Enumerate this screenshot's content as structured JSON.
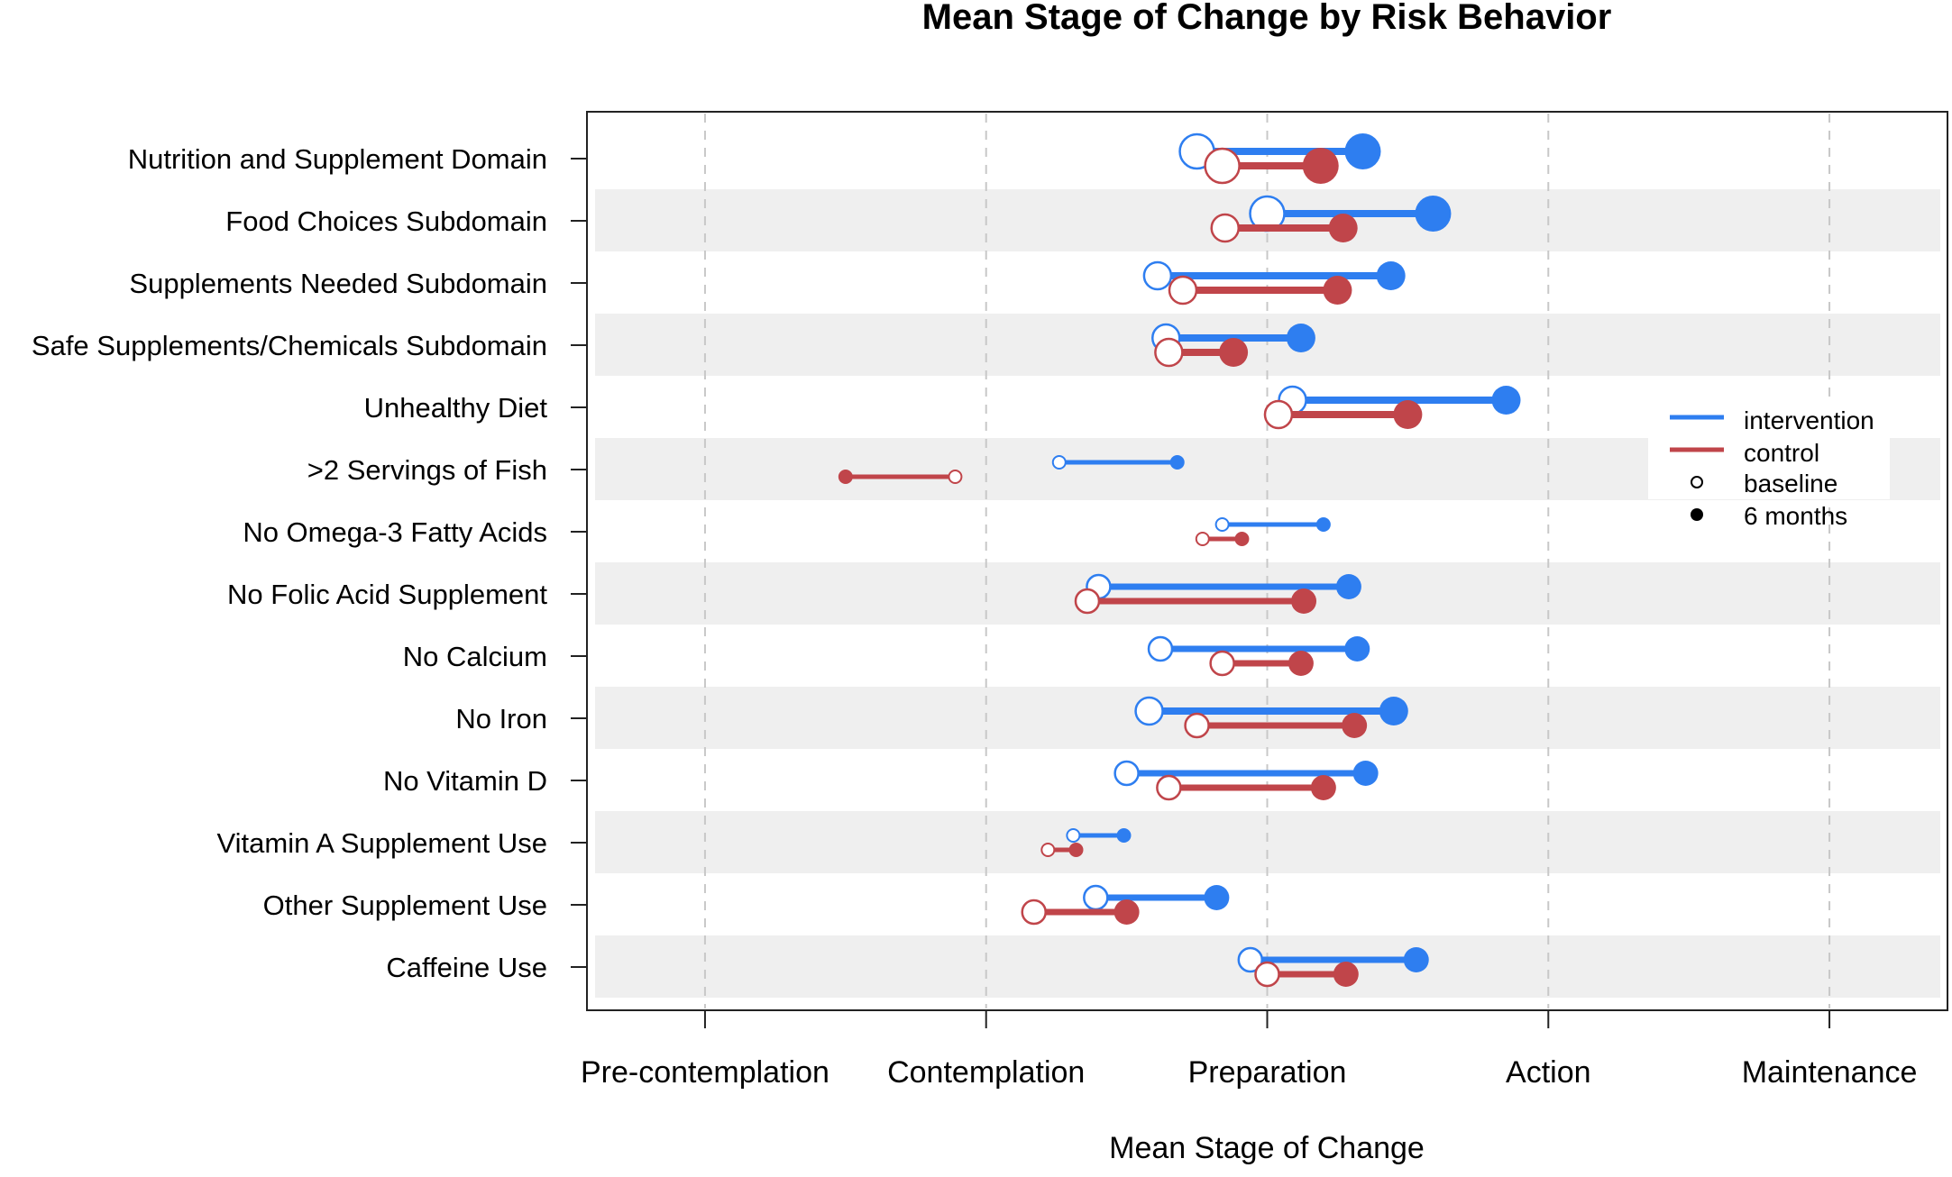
{
  "colors": {
    "intervention": "#2E7EF0",
    "control": "#C0454A",
    "band": "#EFEFEF",
    "grid": "#C8C8C8",
    "axis": "#222222"
  },
  "chart_data": {
    "type": "dot-range",
    "title": "Mean Stage of Change by Risk Behavior",
    "xlabel": "Mean Stage of Change",
    "ylabel": "",
    "xlim": [
      0.58,
      5.42
    ],
    "xticks": [
      1,
      2,
      3,
      4,
      5
    ],
    "xtick_labels": [
      "Pre-contemplation",
      "Contemplation",
      "Preparation",
      "Action",
      "Maintenance"
    ],
    "grid": true,
    "legend_position": "right",
    "legend": {
      "intervention": "intervention",
      "control": "control",
      "baseline": "baseline",
      "six_months": "6 months"
    },
    "categories": [
      "Nutrition and Supplement Domain",
      "Food Choices Subdomain",
      "Supplements Needed Subdomain",
      "Safe Supplements/Chemicals Subdomain",
      "Unhealthy Diet",
      ">2 Servings of Fish",
      "No Omega-3 Fatty Acids",
      "No Folic Acid Supplement",
      "No Calcium",
      "No Iron",
      "No Vitamin D",
      "Vitamin A Supplement Use",
      "Other Supplement Use",
      "Caffeine Use"
    ],
    "series": [
      {
        "name": "intervention",
        "baseline": [
          2.75,
          3.0,
          2.61,
          2.64,
          3.09,
          2.26,
          2.84,
          2.4,
          2.62,
          2.58,
          2.5,
          2.31,
          2.39,
          2.94
        ],
        "six_months": [
          3.34,
          3.59,
          3.44,
          3.12,
          3.85,
          2.68,
          3.2,
          3.29,
          3.32,
          3.45,
          3.35,
          2.49,
          2.82,
          3.53
        ],
        "marker_size": [
          4,
          4,
          3,
          3,
          3,
          1,
          1,
          2,
          2,
          3,
          2,
          1,
          2,
          2
        ]
      },
      {
        "name": "control",
        "baseline": [
          2.84,
          2.85,
          2.7,
          2.65,
          3.04,
          1.89,
          2.77,
          2.36,
          2.84,
          2.75,
          2.65,
          2.22,
          2.17,
          3.0
        ],
        "six_months": [
          3.19,
          3.27,
          3.25,
          2.88,
          3.5,
          1.5,
          2.91,
          3.13,
          3.12,
          3.31,
          3.2,
          2.32,
          2.5,
          3.28
        ],
        "marker_size": [
          4,
          3,
          3,
          3,
          3,
          1,
          1,
          2,
          2,
          2,
          2,
          1,
          2,
          2
        ]
      }
    ]
  }
}
